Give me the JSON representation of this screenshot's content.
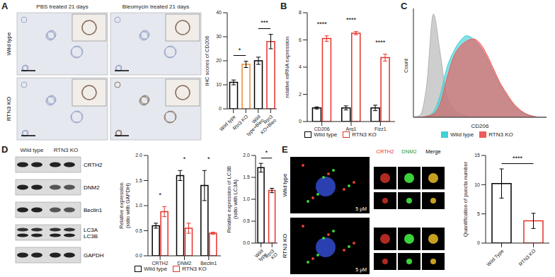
{
  "chart_data": [
    {
      "panel": "A",
      "type": "bar",
      "ylabel": "IHC scores of CD206",
      "categories": [
        "Wild type",
        "Rtn3 KO",
        "Wild type+Bleo",
        "Rtn3 KO+Bleo"
      ],
      "values": [
        11,
        18.5,
        20,
        28
      ],
      "errors": [
        1,
        1.3,
        1.5,
        3
      ],
      "colors": [
        "#000000",
        "#f08c28",
        "#000000",
        "#e8312a"
      ],
      "ylim": [
        0,
        40
      ],
      "yticks": [
        0,
        10,
        20,
        30,
        40
      ],
      "significance": [
        {
          "between": [
            "Wild type",
            "Rtn3 KO"
          ],
          "label": "*"
        },
        {
          "between": [
            "Wild type+Bleo",
            "Rtn3 KO+Bleo"
          ],
          "label": "***"
        }
      ]
    },
    {
      "panel": "B",
      "type": "bar",
      "ylabel": "relative mRNA expression",
      "categories": [
        "CD206",
        "Arg1",
        "Fizz1"
      ],
      "series": [
        {
          "name": "Wild type",
          "color": "#000000",
          "values": [
            1,
            1,
            1
          ],
          "errors": [
            0.08,
            0.15,
            0.2
          ]
        },
        {
          "name": "RTN3 KO",
          "color": "#e8312a",
          "values": [
            6.1,
            6.5,
            4.7
          ],
          "errors": [
            0.2,
            0.12,
            0.25
          ]
        }
      ],
      "ylim": [
        0,
        8
      ],
      "yticks": [
        0,
        2,
        4,
        6,
        8
      ],
      "legend": "bottom",
      "significance": [
        {
          "category": "CD206",
          "label": "****"
        },
        {
          "category": "Arg1",
          "label": "****"
        },
        {
          "category": "Fizz1",
          "label": "****"
        }
      ]
    },
    {
      "panel": "C",
      "type": "area",
      "xlabel": "CD206",
      "ylabel": "Count",
      "x": [
        0,
        5,
        10,
        15,
        20,
        25,
        30,
        35,
        40,
        45,
        50,
        55,
        60,
        65,
        70,
        75,
        80,
        85,
        90,
        95,
        100
      ],
      "series": [
        {
          "color": "#b3b3b3",
          "values": [
            0,
            2,
            30,
            95,
            60,
            20,
            8,
            3,
            1,
            0,
            0,
            0,
            0,
            0,
            0,
            0,
            0,
            0,
            0,
            0,
            0
          ]
        },
        {
          "name": "Wild type",
          "color": "#40d0d6",
          "values": [
            0,
            0,
            1,
            5,
            20,
            45,
            60,
            70,
            75,
            72,
            65,
            55,
            42,
            30,
            20,
            12,
            6,
            3,
            1,
            0,
            0
          ]
        },
        {
          "name": "RTN3 KO",
          "color": "#f05a5a",
          "values": [
            0,
            0,
            1,
            3,
            12,
            35,
            55,
            65,
            70,
            72,
            68,
            58,
            45,
            32,
            22,
            13,
            7,
            3,
            1,
            0,
            0
          ]
        }
      ],
      "xlim": [
        0,
        100
      ],
      "ylim": [
        0,
        100
      ],
      "tick_labels": false,
      "legend": "bottom"
    },
    {
      "panel": "D",
      "type": "bar",
      "ylabel": "Relative expression(ratio with GAPDH)",
      "categories": [
        "CRTH2",
        "DNM2",
        "Beclin1"
      ],
      "series": [
        {
          "name": "Wild type",
          "color": "#000000",
          "values": [
            0.6,
            1.6,
            1.4
          ],
          "errors": [
            0.05,
            0.1,
            0.3
          ]
        },
        {
          "name": "RTN3 KO",
          "color": "#e8312a",
          "values": [
            0.88,
            0.55,
            0.45
          ],
          "errors": [
            0.1,
            0.1,
            0.02
          ]
        }
      ],
      "ylim": [
        0,
        2
      ],
      "yticks": [
        {
          "value": 0,
          "label": "0.0"
        },
        0.5,
        {
          "value": 1,
          "label": "1.0"
        },
        1.5,
        {
          "value": 2,
          "label": "2.0"
        }
      ],
      "legend": "bottom",
      "significance": [
        {
          "category": "CRTH2",
          "label": "*"
        },
        {
          "category": "DNM2",
          "label": "*"
        },
        {
          "category": "Beclin1",
          "label": "*"
        }
      ]
    },
    {
      "panel": "D",
      "type": "bar",
      "ylabel": "Relative expression of LC3B(ratio with LC3A)",
      "categories": [
        "Wild type",
        "Rtn3 KO"
      ],
      "values": [
        1.72,
        1.2
      ],
      "errors": [
        0.1,
        0.05
      ],
      "colors": [
        "#000000",
        "#e8312a"
      ],
      "ylim": [
        0,
        2
      ],
      "yticks": [
        {
          "value": 0,
          "label": "0.0"
        },
        0.5,
        {
          "value": 1,
          "label": "1.0"
        },
        1.5,
        {
          "value": 2,
          "label": "2.0"
        }
      ],
      "significance": [
        {
          "between": [
            "Wild type",
            "Rtn3 KO"
          ],
          "label": "*"
        }
      ]
    },
    {
      "panel": "E",
      "type": "bar",
      "ylabel": "Quantification of puncta number",
      "categories": [
        "Wild Type",
        "RTN3 KO"
      ],
      "values": [
        10.2,
        3.8
      ],
      "errors": [
        2.5,
        1.3
      ],
      "colors": [
        "#000000",
        "#e8312a"
      ],
      "ylim": [
        0,
        15
      ],
      "yticks": [
        0,
        5,
        10,
        15
      ],
      "significance": [
        {
          "between": [
            "Wild Type",
            "RTN3 KO"
          ],
          "label": "****"
        }
      ]
    }
  ],
  "panels": {
    "labels": [
      "A",
      "B",
      "C",
      "D",
      "E"
    ],
    "A": {
      "columns": [
        "PBS treated 21 days",
        "Bleomycin treated 21 days"
      ],
      "rows": [
        "Wild type",
        "RTN3 KO"
      ]
    },
    "D": {
      "columns": [
        "Wild type",
        "RTN3 KO"
      ],
      "bands": [
        [
          "CRTH2"
        ],
        [
          "DNM2"
        ],
        [
          "Beclin1"
        ],
        [
          "LC3A",
          "LC3B"
        ],
        [
          "GAPDH"
        ]
      ]
    },
    "E": {
      "rows": [
        "Wild type",
        "RTN3 KO"
      ],
      "channels": [
        "CRTH2",
        "DNM2",
        "Merge"
      ],
      "scale_bar": "5 μM"
    }
  }
}
